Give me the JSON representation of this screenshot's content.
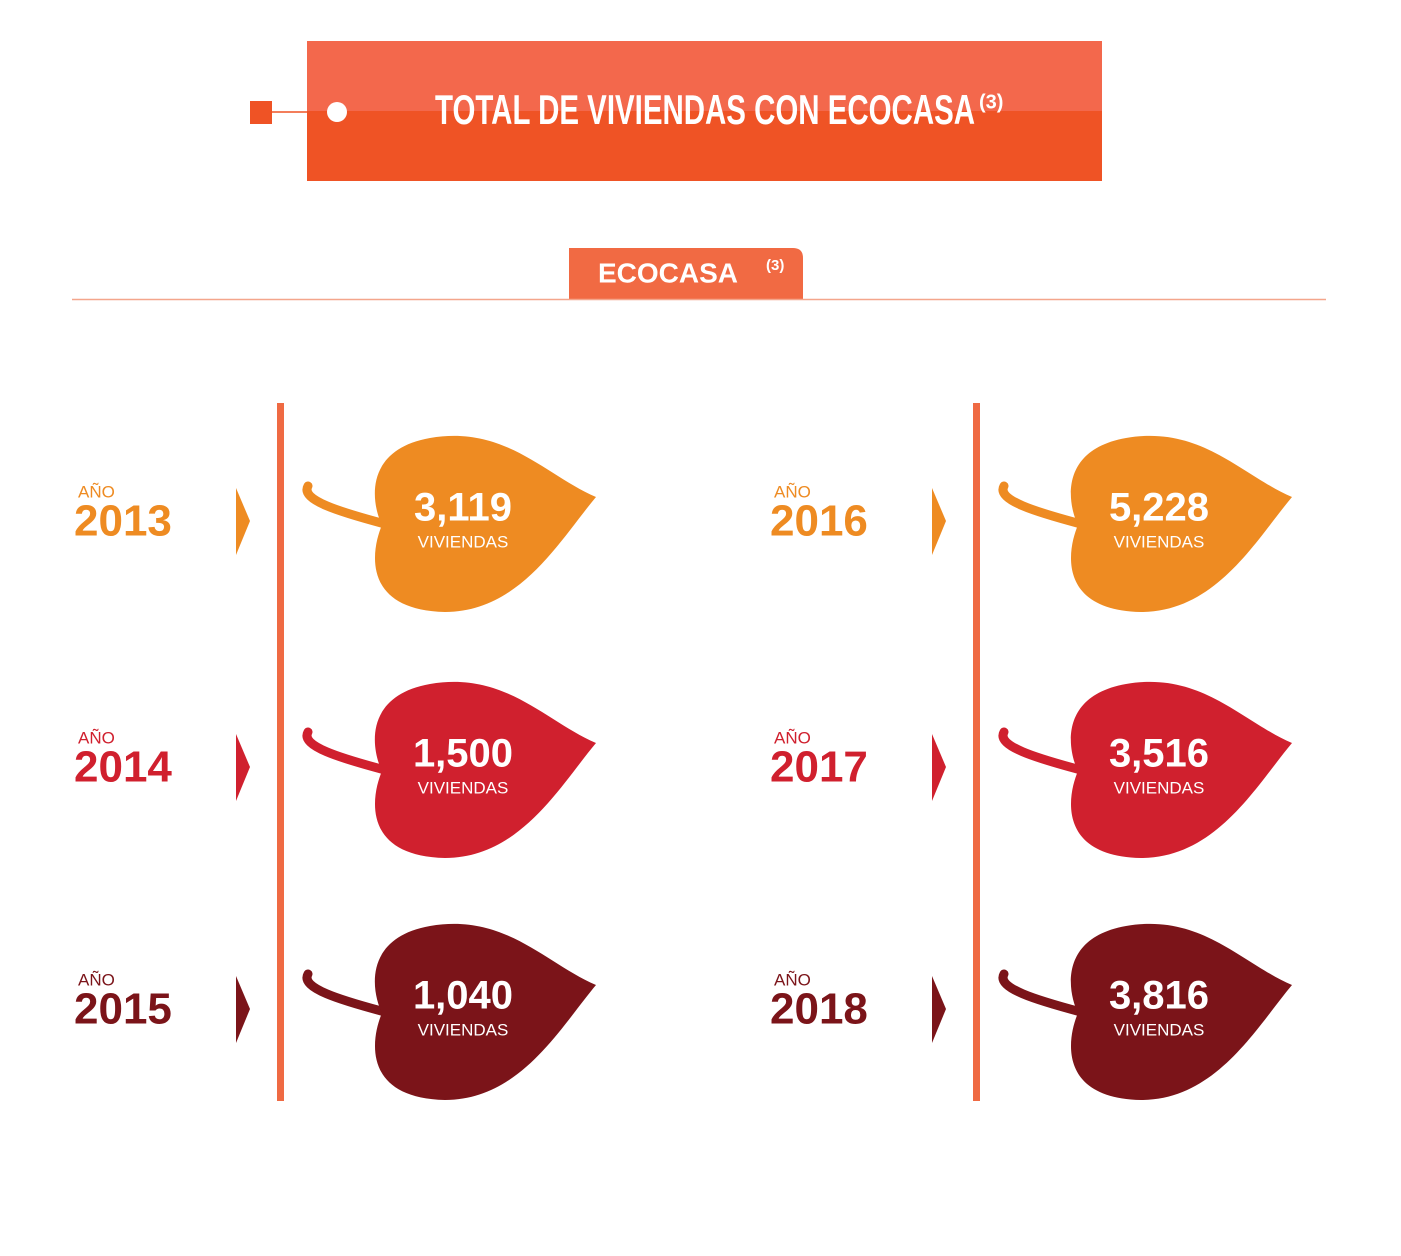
{
  "header": {
    "title": "TOTAL DE VIVIENDAS CON ECOCASA",
    "note": "(3)"
  },
  "section": {
    "label": "ECOCASA",
    "note": "(3)"
  },
  "items": [
    {
      "year_label": "AÑO",
      "year": "2013",
      "value": "3,119",
      "unit": "VIVIENDAS",
      "color": "#ee8b22"
    },
    {
      "year_label": "AÑO",
      "year": "2014",
      "value": "1,500",
      "unit": "VIVIENDAS",
      "color": "#d0202e"
    },
    {
      "year_label": "AÑO",
      "year": "2015",
      "value": "1,040",
      "unit": "VIVIENDAS",
      "color": "#7b1419"
    },
    {
      "year_label": "AÑO",
      "year": "2016",
      "value": "5,228",
      "unit": "VIVIENDAS",
      "color": "#ee8b22"
    },
    {
      "year_label": "AÑO",
      "year": "2017",
      "value": "3,516",
      "unit": "VIVIENDAS",
      "color": "#d0202e"
    },
    {
      "year_label": "AÑO",
      "year": "2018",
      "value": "3,816",
      "unit": "VIVIENDAS",
      "color": "#7b1419"
    }
  ]
}
